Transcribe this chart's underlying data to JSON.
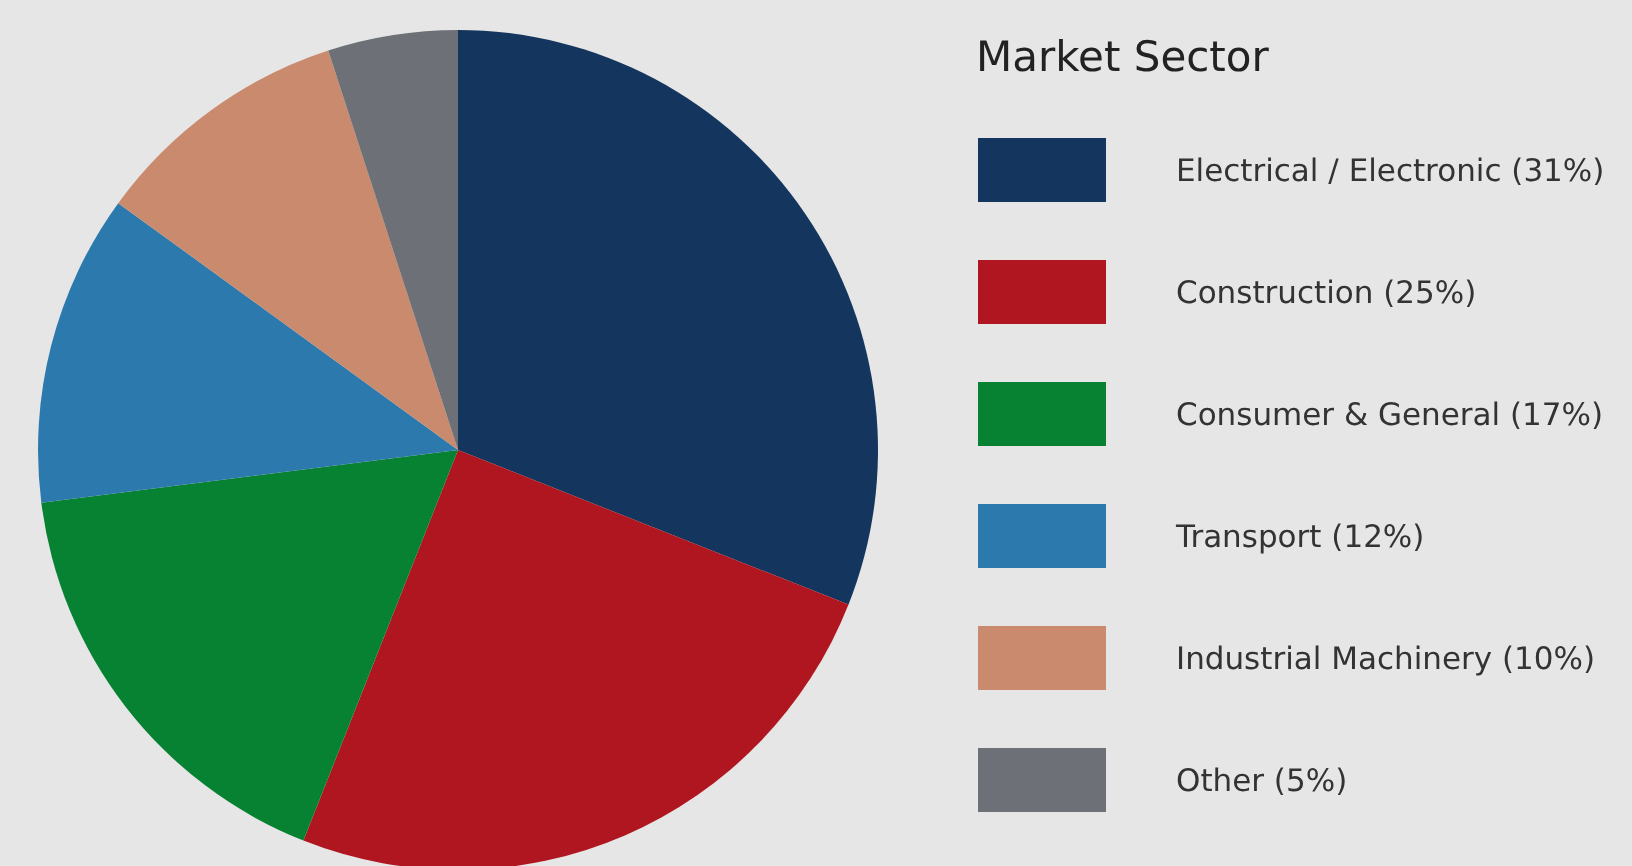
{
  "chart_data": {
    "type": "pie",
    "legend_title": "Market Sector",
    "legend": "right",
    "categories": [
      "Electrical / Electronic (31%)",
      "Construction (25%)",
      "Consumer & General (17%)",
      "Transport (12%)",
      "Industrial Machinery (10%)",
      "Other (5%)"
    ],
    "values": [
      31,
      25,
      17,
      12,
      10,
      5
    ],
    "colors": [
      "#14365e",
      "#b0161f",
      "#078232",
      "#2c7aad",
      "#c98a6e",
      "#6d7177"
    ]
  }
}
